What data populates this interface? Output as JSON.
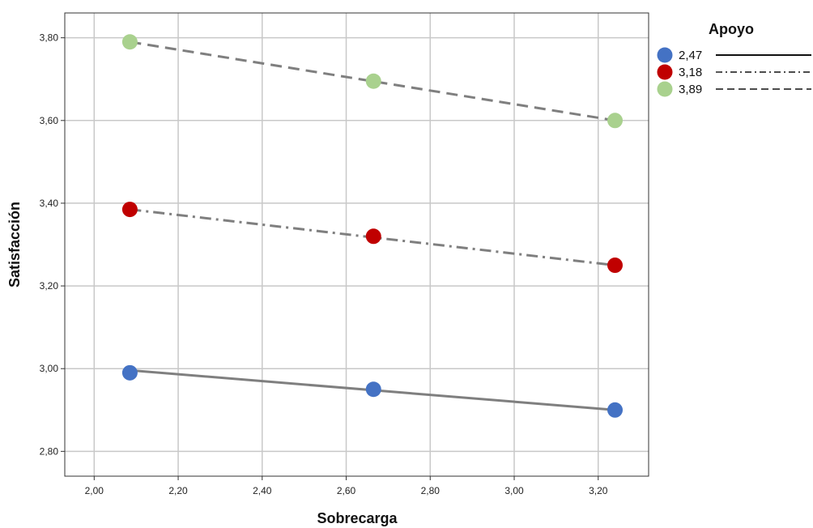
{
  "chart_data": {
    "type": "line",
    "xlabel": "Sobrecarga",
    "ylabel": "Satisfacción",
    "xlim": [
      1.93,
      3.32
    ],
    "ylim": [
      2.74,
      3.86
    ],
    "x_ticks": [
      "2,00",
      "2,20",
      "2,40",
      "2,60",
      "2,80",
      "3,00",
      "3,20"
    ],
    "x_tick_values": [
      2.0,
      2.2,
      2.4,
      2.6,
      2.8,
      3.0,
      3.2
    ],
    "y_ticks": [
      "2,80",
      "3,00",
      "3,20",
      "3,40",
      "3,60",
      "3,80"
    ],
    "y_tick_values": [
      2.8,
      3.0,
      3.2,
      3.4,
      3.6,
      3.8
    ],
    "grid": true,
    "x": [
      2.085,
      2.665,
      3.24
    ],
    "legend": {
      "title": "Apoyo",
      "placement": "top-right"
    },
    "series": [
      {
        "name": "2,47",
        "values": [
          2.99,
          2.95,
          2.9
        ],
        "color": "#4472C4",
        "line_style": "solid"
      },
      {
        "name": "3,18",
        "values": [
          3.385,
          3.32,
          3.25
        ],
        "color": "#C00000",
        "line_style": "dash-dot"
      },
      {
        "name": "3,89",
        "values": [
          3.79,
          3.695,
          3.6
        ],
        "color": "#A9D18E",
        "line_style": "dashed"
      }
    ]
  }
}
